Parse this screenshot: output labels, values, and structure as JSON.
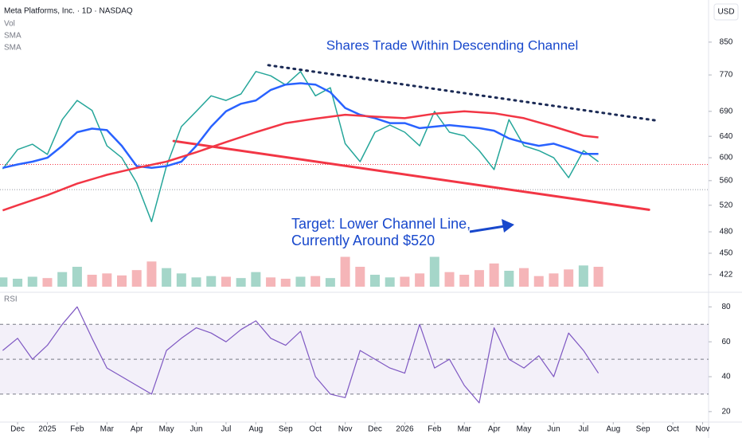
{
  "chart_data": [
    {
      "type": "line",
      "title": "Shares Trade Within Descending Channel",
      "annotations": [
        "Target: Lower Channel Line,",
        "Currently Around $520"
      ],
      "currency": "USD",
      "log_scale": true,
      "xlim": [
        -0.59,
        23.2
      ],
      "ylim": [
        402,
        965
      ],
      "yticks": [
        422,
        450,
        480,
        520,
        560,
        600,
        640,
        690,
        770,
        850
      ],
      "series": [
        {
          "name": "Meta Platforms, Inc. · 1D · NASDAQ",
          "color": "#26a69a",
          "x": [
            -0.5,
            0,
            0.5,
            1,
            1.5,
            2,
            2.5,
            3,
            3.5,
            4,
            4.5,
            5,
            5.5,
            6,
            6.5,
            7,
            7.5,
            8,
            8.5,
            9,
            9.5,
            10,
            10.5,
            11,
            11.5,
            12,
            12.5,
            13,
            13.5,
            14,
            14.5,
            15,
            15.5,
            16,
            16.5,
            17,
            17.5,
            18,
            18.5,
            19,
            19.5
          ],
          "values": [
            580,
            615,
            625,
            606,
            673,
            713,
            692,
            622,
            600,
            556,
            495,
            585,
            659,
            690,
            723,
            713,
            727,
            778,
            768,
            747,
            778,
            723,
            741,
            626,
            593,
            648,
            662,
            648,
            622,
            690,
            648,
            641,
            613,
            579,
            673,
            622,
            613,
            600,
            565,
            613,
            593
          ]
        },
        {
          "name": "SMA",
          "color": "#2962ff",
          "x": [
            -0.5,
            0,
            0.5,
            1,
            1.5,
            2,
            2.5,
            3,
            3.5,
            4,
            4.5,
            5,
            5.5,
            6,
            6.5,
            7,
            7.5,
            8,
            8.5,
            9,
            9.5,
            10,
            10.5,
            11,
            11.5,
            12,
            12.5,
            13,
            13.5,
            14,
            14.5,
            15,
            15.5,
            16,
            16.5,
            17,
            17.5,
            18,
            18.5,
            19,
            19.5
          ],
          "values": [
            582,
            588,
            593,
            600,
            622,
            648,
            655,
            652,
            622,
            585,
            582,
            585,
            593,
            622,
            659,
            690,
            706,
            713,
            736,
            748,
            751,
            748,
            731,
            697,
            683,
            676,
            666,
            666,
            656,
            659,
            662,
            659,
            656,
            651,
            636,
            628,
            622,
            626,
            617,
            607,
            607
          ]
        },
        {
          "name": "SMA",
          "color": "#f23645",
          "x": [
            -0.5,
            0,
            1,
            2,
            3,
            4,
            5,
            6,
            7,
            8,
            9,
            10,
            11,
            12,
            13,
            14,
            15,
            16,
            17,
            18,
            19,
            19.5
          ],
          "values": [
            512,
            520,
            536,
            555,
            570,
            582,
            593,
            610,
            629,
            648,
            666,
            675,
            683,
            679,
            676,
            685,
            690,
            686,
            676,
            659,
            641,
            638
          ]
        }
      ],
      "trend_lines": [
        {
          "style": "dotted",
          "color": "#1b2a55",
          "x": [
            8.42,
            21.47
          ],
          "values": [
            793,
            671
          ]
        },
        {
          "style": "solid",
          "color": "#f23645",
          "x": [
            5.24,
            21.2
          ],
          "values": [
            631,
            513
          ]
        }
      ],
      "price_lines": [
        {
          "value": 588,
          "color": "#f23645"
        },
        {
          "value": 545,
          "color": "#9598a1"
        }
      ]
    },
    {
      "type": "bar",
      "xlim": [
        -0.59,
        23.2
      ],
      "ylim": [
        0,
        60
      ],
      "up_color": "#a5d6c9",
      "down_color": "#f5b5b8",
      "series": [
        {
          "name": "Vol",
          "x": [
            -0.5,
            0,
            0.5,
            1,
            1.5,
            2,
            2.5,
            3,
            3.5,
            4,
            4.5,
            5,
            5.5,
            6,
            6.5,
            7,
            7.5,
            8,
            8.5,
            9,
            9.5,
            10,
            10.5,
            11,
            11.5,
            12,
            12.5,
            13,
            13.5,
            14,
            14.5,
            15,
            15.5,
            16,
            16.5,
            17,
            17.5,
            18,
            18.5,
            19,
            19.5
          ],
          "values": [
            14,
            12,
            15,
            13,
            22,
            30,
            18,
            20,
            17,
            25,
            38,
            28,
            20,
            14,
            16,
            15,
            13,
            22,
            14,
            12,
            15,
            16,
            13,
            45,
            30,
            18,
            14,
            15,
            20,
            45,
            22,
            18,
            25,
            35,
            24,
            28,
            16,
            20,
            26,
            32,
            30
          ]
        }
      ]
    },
    {
      "type": "line",
      "xlim": [
        -0.59,
        23.2
      ],
      "ylim": [
        14,
        87
      ],
      "yticks": [
        20,
        40,
        60,
        80
      ],
      "levels": [
        30,
        50,
        70
      ],
      "xticks": [
        {
          "value": 0,
          "label": "Dec"
        },
        {
          "value": 1,
          "label": "2025"
        },
        {
          "value": 2,
          "label": "Feb"
        },
        {
          "value": 3,
          "label": "Mar"
        },
        {
          "value": 4,
          "label": "Apr"
        },
        {
          "value": 5,
          "label": "May"
        },
        {
          "value": 6,
          "label": "Jun"
        },
        {
          "value": 7,
          "label": "Jul"
        },
        {
          "value": 8,
          "label": "Aug"
        },
        {
          "value": 9,
          "label": "Sep"
        },
        {
          "value": 10,
          "label": "Oct"
        },
        {
          "value": 11,
          "label": "Nov"
        },
        {
          "value": 12,
          "label": "Dec"
        },
        {
          "value": 13,
          "label": "2026"
        },
        {
          "value": 14,
          "label": "Feb"
        },
        {
          "value": 15,
          "label": "Mar"
        },
        {
          "value": 16,
          "label": "Apr"
        },
        {
          "value": 17,
          "label": "May"
        },
        {
          "value": 18,
          "label": "Jun"
        },
        {
          "value": 19,
          "label": "Jul"
        },
        {
          "value": 20,
          "label": "Aug"
        },
        {
          "value": 21,
          "label": "Sep"
        },
        {
          "value": 22,
          "label": "Oct"
        },
        {
          "value": 23,
          "label": "Nov"
        }
      ],
      "series": [
        {
          "name": "RSI",
          "color": "#7e57c2",
          "x": [
            -0.5,
            0,
            0.5,
            1,
            1.5,
            2,
            2.5,
            3,
            3.5,
            4,
            4.5,
            5,
            5.5,
            6,
            6.5,
            7,
            7.5,
            8,
            8.5,
            9,
            9.5,
            10,
            10.5,
            11,
            11.5,
            12,
            12.5,
            13,
            13.5,
            14,
            14.5,
            15,
            15.5,
            16,
            16.5,
            17,
            17.5,
            18,
            18.5,
            19,
            19.5
          ],
          "values": [
            55,
            62,
            50,
            58,
            70,
            80,
            62,
            45,
            40,
            35,
            30,
            55,
            62,
            68,
            65,
            60,
            67,
            72,
            62,
            58,
            66,
            40,
            30,
            28,
            55,
            50,
            45,
            42,
            70,
            45,
            50,
            35,
            25,
            68,
            50,
            45,
            52,
            40,
            65,
            55,
            42
          ]
        }
      ]
    }
  ]
}
